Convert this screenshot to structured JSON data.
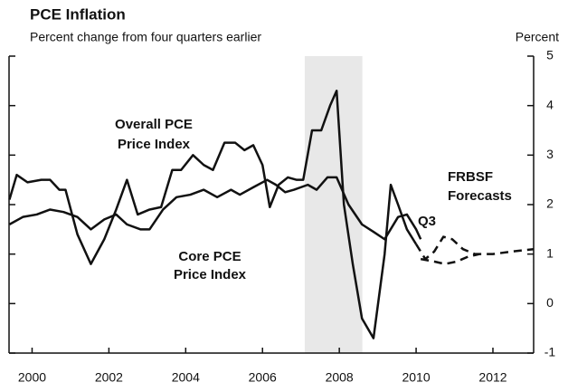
{
  "chart_data": {
    "type": "line",
    "title": "PCE Inflation",
    "subtitle": "Percent change from four quarters earlier",
    "y_axis_label": "Percent",
    "annotations": [
      "Overall PCE",
      "Price Index",
      "Core PCE",
      "Price Index",
      "FRBSF",
      "Forecasts",
      "Q3"
    ],
    "xlim": [
      1999.4,
      2013.06
    ],
    "xticks": [
      2000,
      2002,
      2004,
      2006,
      2008,
      2010,
      2012
    ],
    "ylim": [
      -1,
      5
    ],
    "yticks": [
      -1,
      0,
      1,
      2,
      3,
      4,
      5
    ],
    "shade": [
      2007.1,
      2008.6
    ],
    "series": [
      {
        "color": "#111111",
        "dashed": false,
        "x": [
          1999.41,
          1999.6,
          1999.88,
          2000.24,
          2000.47,
          2000.71,
          2000.87,
          2001.18,
          2001.53,
          2001.88,
          2002.19,
          2002.47,
          2002.75,
          2003.06,
          2003.36,
          2003.65,
          2003.88,
          2004.19,
          2004.47,
          2004.71,
          2005.01,
          2005.29,
          2005.53,
          2005.76,
          2006,
          2006.19,
          2006.42,
          2006.66,
          2006.89,
          2007.06,
          2007.29,
          2007.53,
          2007.76,
          2007.93,
          2008.12,
          2008.35,
          2008.59,
          2008.89,
          2009.18,
          2009.34,
          2009.53,
          2009.76,
          2010
        ],
        "values": [
          2.1,
          2.6,
          2.45,
          2.5,
          2.5,
          2.3,
          2.3,
          1.4,
          0.8,
          1.3,
          1.9,
          2.5,
          1.8,
          1.9,
          1.95,
          2.7,
          2.7,
          3.0,
          2.8,
          2.7,
          3.25,
          3.25,
          3.1,
          3.2,
          2.8,
          1.95,
          2.4,
          2.55,
          2.5,
          2.5,
          3.5,
          3.5,
          4.0,
          4.3,
          2.0,
          0.8,
          -0.3,
          -0.7,
          1.0,
          2.4,
          2.0,
          1.5,
          1.2
        ]
      },
      {
        "color": "#111111",
        "dashed": false,
        "x": [
          1999.41,
          1999.76,
          2000.12,
          2000.47,
          2000.82,
          2001.18,
          2001.53,
          2001.88,
          2002.19,
          2002.47,
          2002.82,
          2003.06,
          2003.41,
          2003.76,
          2004.12,
          2004.47,
          2004.82,
          2005.18,
          2005.41,
          2005.76,
          2006.12,
          2006.35,
          2006.59,
          2006.82,
          2007.18,
          2007.41,
          2007.69,
          2007.93,
          2008.24,
          2008.59,
          2008.89,
          2009.18,
          2009.53,
          2009.76,
          2010,
          2010.12
        ],
        "values": [
          1.6,
          1.75,
          1.8,
          1.9,
          1.85,
          1.75,
          1.5,
          1.7,
          1.8,
          1.6,
          1.5,
          1.5,
          1.9,
          2.15,
          2.2,
          2.3,
          2.15,
          2.3,
          2.2,
          2.35,
          2.5,
          2.4,
          2.25,
          2.3,
          2.4,
          2.3,
          2.55,
          2.55,
          2.0,
          1.6,
          1.45,
          1.3,
          1.75,
          1.8,
          1.5,
          1.3
        ]
      },
      {
        "color": "#111111",
        "dashed": true,
        "x": [
          2010,
          2010.24,
          2010.47,
          2010.71,
          2010.94,
          2011.22,
          2011.53,
          2012,
          2012.47,
          2013.06
        ],
        "values": [
          1.2,
          0.9,
          1.05,
          1.35,
          1.3,
          1.1,
          1.0,
          1.0,
          1.05,
          1.1
        ]
      },
      {
        "color": "#111111",
        "dashed": true,
        "x": [
          2010.12,
          2010.47,
          2010.75,
          2011.06,
          2011.36,
          2011.65
        ],
        "values": [
          0.9,
          0.85,
          0.8,
          0.85,
          0.95,
          1.0
        ]
      }
    ]
  }
}
